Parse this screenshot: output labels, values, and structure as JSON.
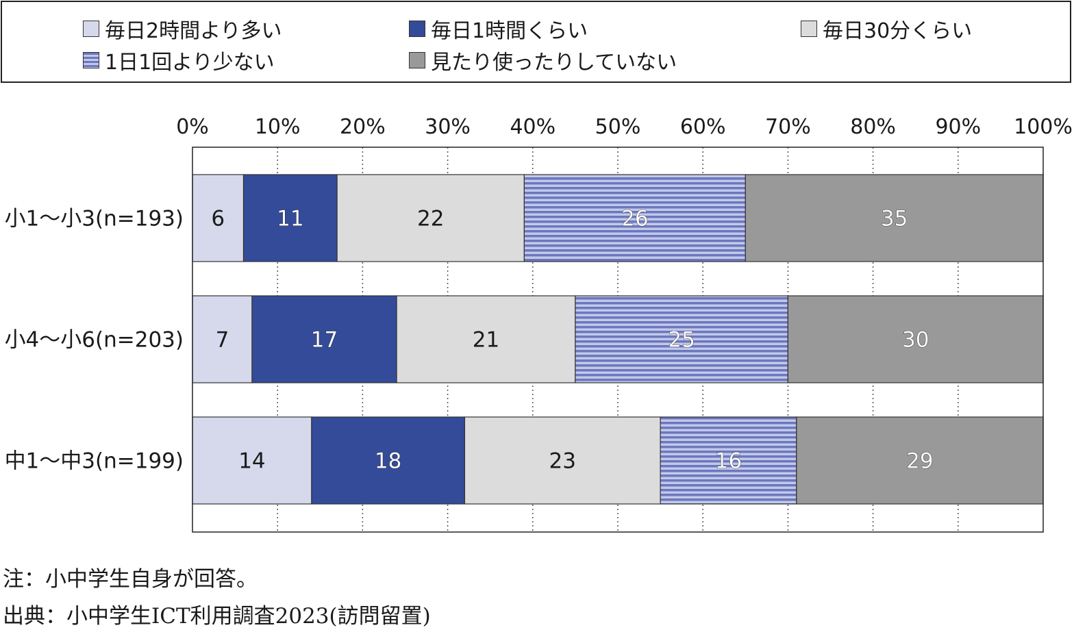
{
  "legend": {
    "items": [
      {
        "label": "毎日2時間より多い",
        "swatch": "light"
      },
      {
        "label": "毎日1時間くらい",
        "swatch": "dark"
      },
      {
        "label": "毎日30分くらい",
        "swatch": "pale"
      },
      {
        "label": "1日1回より少ない",
        "swatch": "striped"
      },
      {
        "label": "見たり使ったりしていない",
        "swatch": "gray"
      }
    ]
  },
  "chart_data": {
    "type": "bar",
    "orientation": "horizontal",
    "stacked": true,
    "percent_scale": true,
    "xlim": [
      0,
      100
    ],
    "x_ticks": [
      "0%",
      "10%",
      "20%",
      "30%",
      "40%",
      "50%",
      "60%",
      "70%",
      "80%",
      "90%",
      "100%"
    ],
    "categories": [
      "小1～小3(n=193)",
      "小4～小6(n=203)",
      "中1～中3(n=199)"
    ],
    "series": [
      {
        "name": "毎日2時間より多い",
        "values": [
          6,
          7,
          14
        ]
      },
      {
        "name": "毎日1時間くらい",
        "values": [
          11,
          17,
          18
        ]
      },
      {
        "name": "毎日30分くらい",
        "values": [
          22,
          21,
          23
        ]
      },
      {
        "name": "1日1回より少ない",
        "values": [
          26,
          25,
          16
        ]
      },
      {
        "name": "見たり使ったりしていない",
        "values": [
          35,
          30,
          29
        ]
      }
    ],
    "grid": "vertical dotted",
    "legend_position": "top"
  },
  "colors": {
    "light": "#d6d9ec",
    "dark": "#334b99",
    "pale": "#dcdcdc",
    "striped_a": "#6b78bf",
    "striped_b": "#c3c8e8",
    "gray": "#999999"
  },
  "notes": {
    "note": "注：小中学生自身が回答。",
    "source": "出典：小中学生ICT利用調査2023(訪問留置)"
  }
}
